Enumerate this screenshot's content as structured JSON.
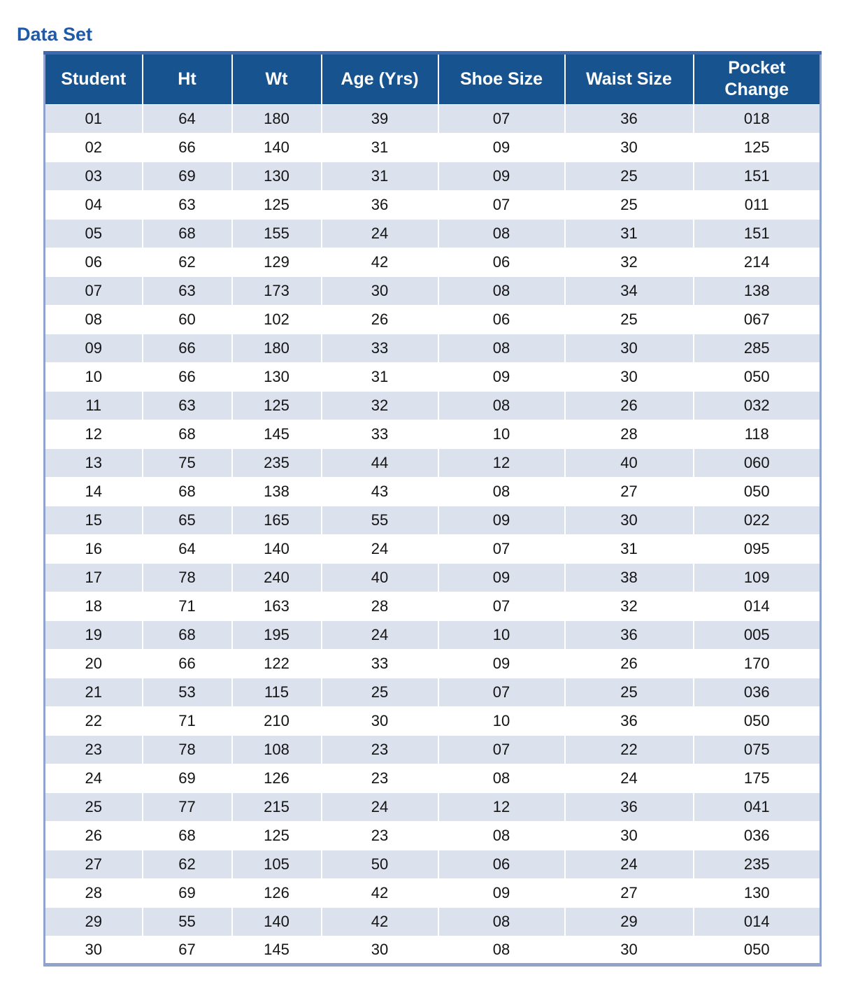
{
  "title": "Data Set",
  "colors": {
    "title_color": "#1D5AA9",
    "header_bg": "#17548F",
    "header_text": "#FFFFFF",
    "row_alt_bg": "#DCE1EE",
    "row_bg": "#FFFFFF",
    "frame_border": "#8FA3CD",
    "top_border": "#3E68B0",
    "body_text": "#141414"
  },
  "table": {
    "columns": [
      "Student",
      "Ht",
      "Wt",
      "Age (Yrs)",
      "Shoe Size",
      "Waist Size",
      "Pocket Change"
    ],
    "rows": [
      [
        "01",
        "64",
        "180",
        "39",
        "07",
        "36",
        "018"
      ],
      [
        "02",
        "66",
        "140",
        "31",
        "09",
        "30",
        "125"
      ],
      [
        "03",
        "69",
        "130",
        "31",
        "09",
        "25",
        "151"
      ],
      [
        "04",
        "63",
        "125",
        "36",
        "07",
        "25",
        "011"
      ],
      [
        "05",
        "68",
        "155",
        "24",
        "08",
        "31",
        "151"
      ],
      [
        "06",
        "62",
        "129",
        "42",
        "06",
        "32",
        "214"
      ],
      [
        "07",
        "63",
        "173",
        "30",
        "08",
        "34",
        "138"
      ],
      [
        "08",
        "60",
        "102",
        "26",
        "06",
        "25",
        "067"
      ],
      [
        "09",
        "66",
        "180",
        "33",
        "08",
        "30",
        "285"
      ],
      [
        "10",
        "66",
        "130",
        "31",
        "09",
        "30",
        "050"
      ],
      [
        "11",
        "63",
        "125",
        "32",
        "08",
        "26",
        "032"
      ],
      [
        "12",
        "68",
        "145",
        "33",
        "10",
        "28",
        "118"
      ],
      [
        "13",
        "75",
        "235",
        "44",
        "12",
        "40",
        "060"
      ],
      [
        "14",
        "68",
        "138",
        "43",
        "08",
        "27",
        "050"
      ],
      [
        "15",
        "65",
        "165",
        "55",
        "09",
        "30",
        "022"
      ],
      [
        "16",
        "64",
        "140",
        "24",
        "07",
        "31",
        "095"
      ],
      [
        "17",
        "78",
        "240",
        "40",
        "09",
        "38",
        "109"
      ],
      [
        "18",
        "71",
        "163",
        "28",
        "07",
        "32",
        "014"
      ],
      [
        "19",
        "68",
        "195",
        "24",
        "10",
        "36",
        "005"
      ],
      [
        "20",
        "66",
        "122",
        "33",
        "09",
        "26",
        "170"
      ],
      [
        "21",
        "53",
        "115",
        "25",
        "07",
        "25",
        "036"
      ],
      [
        "22",
        "71",
        "210",
        "30",
        "10",
        "36",
        "050"
      ],
      [
        "23",
        "78",
        "108",
        "23",
        "07",
        "22",
        "075"
      ],
      [
        "24",
        "69",
        "126",
        "23",
        "08",
        "24",
        "175"
      ],
      [
        "25",
        "77",
        "215",
        "24",
        "12",
        "36",
        "041"
      ],
      [
        "26",
        "68",
        "125",
        "23",
        "08",
        "30",
        "036"
      ],
      [
        "27",
        "62",
        "105",
        "50",
        "06",
        "24",
        "235"
      ],
      [
        "28",
        "69",
        "126",
        "42",
        "09",
        "27",
        "130"
      ],
      [
        "29",
        "55",
        "140",
        "42",
        "08",
        "29",
        "014"
      ],
      [
        "30",
        "67",
        "145",
        "30",
        "08",
        "30",
        "050"
      ]
    ]
  }
}
